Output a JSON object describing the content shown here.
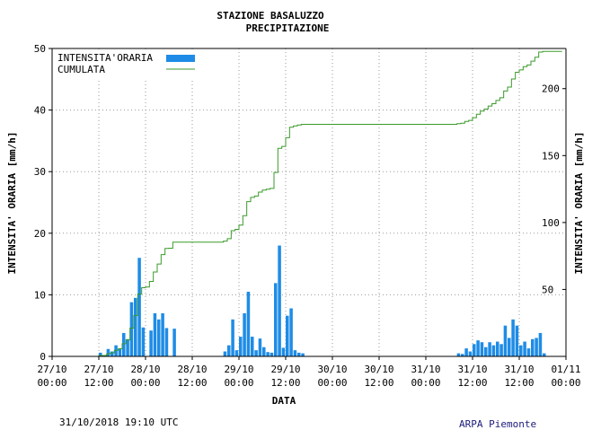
{
  "chart_data": {
    "type": "bar",
    "title": "STAZIONE BASALUZZO",
    "subtitle": "PRECIPITAZIONE",
    "xlabel": "DATA",
    "ylabel_left": "INTENSITA' ORARIA [mm/h]",
    "ylabel_right": "INTENSITA' ORARIA [mm/h]",
    "ylim_left": [
      0,
      50
    ],
    "ylim_right": [
      0,
      230
    ],
    "y_ticks_left": [
      "0",
      "10",
      "20",
      "30",
      "40",
      "50"
    ],
    "y_ticks_right": [
      "50",
      "100",
      "150",
      "200"
    ],
    "x_ticks": [
      {
        "date": "27/10",
        "time": "00:00"
      },
      {
        "date": "27/10",
        "time": "12:00"
      },
      {
        "date": "28/10",
        "time": "00:00"
      },
      {
        "date": "28/10",
        "time": "12:00"
      },
      {
        "date": "29/10",
        "time": "00:00"
      },
      {
        "date": "29/10",
        "time": "12:00"
      },
      {
        "date": "30/10",
        "time": "00:00"
      },
      {
        "date": "30/10",
        "time": "12:00"
      },
      {
        "date": "31/10",
        "time": "00:00"
      },
      {
        "date": "31/10",
        "time": "12:00"
      },
      {
        "date": "31/10",
        "time": "12:00"
      },
      {
        "date": "01/11",
        "time": "00:00"
      }
    ],
    "grid": true,
    "legend_position": "top-left",
    "series": [
      {
        "name": "INTENSITA'ORARIA",
        "kind": "bar",
        "color": "#1e8ce6",
        "points": [
          [
            12,
            0.6
          ],
          [
            14,
            1.2
          ],
          [
            15,
            0.8
          ],
          [
            16,
            1.8
          ],
          [
            17,
            1.2
          ],
          [
            18,
            3.8
          ],
          [
            19,
            2.8
          ],
          [
            20,
            8.8
          ],
          [
            21,
            9.5
          ],
          [
            22,
            16.0
          ],
          [
            23,
            4.7
          ],
          [
            25,
            4.2
          ],
          [
            26,
            7.0
          ],
          [
            27,
            6.0
          ],
          [
            28,
            7.0
          ],
          [
            29,
            4.6
          ],
          [
            31,
            4.5
          ],
          [
            44,
            0.8
          ],
          [
            45,
            1.8
          ],
          [
            46,
            6.0
          ],
          [
            47,
            1.0
          ],
          [
            48,
            3.2
          ],
          [
            49,
            7.0
          ],
          [
            50,
            10.5
          ],
          [
            51,
            3.2
          ],
          [
            52,
            1.0
          ],
          [
            53,
            2.9
          ],
          [
            54,
            1.5
          ],
          [
            55,
            0.7
          ],
          [
            56,
            0.6
          ],
          [
            57,
            11.9
          ],
          [
            58,
            18.0
          ],
          [
            59,
            1.4
          ],
          [
            60,
            6.6
          ],
          [
            61,
            7.8
          ],
          [
            62,
            1.0
          ],
          [
            63,
            0.6
          ],
          [
            64,
            0.5
          ],
          [
            104,
            0.5
          ],
          [
            105,
            0.4
          ],
          [
            106,
            1.3
          ],
          [
            107,
            0.8
          ],
          [
            108,
            2.0
          ],
          [
            109,
            2.6
          ],
          [
            110,
            2.3
          ],
          [
            111,
            1.5
          ],
          [
            112,
            2.3
          ],
          [
            113,
            1.8
          ],
          [
            114,
            2.4
          ],
          [
            115,
            2.0
          ],
          [
            116,
            5.0
          ],
          [
            117,
            3.0
          ],
          [
            118,
            6.0
          ],
          [
            119,
            5.0
          ],
          [
            120,
            1.8
          ],
          [
            121,
            2.4
          ],
          [
            122,
            1.3
          ],
          [
            123,
            2.8
          ],
          [
            124,
            3.0
          ],
          [
            125,
            3.8
          ],
          [
            126,
            0.5
          ]
        ]
      },
      {
        "name": "CUMULATA",
        "kind": "line",
        "color": "#3a9a2a",
        "points": [
          [
            0,
            0
          ],
          [
            11,
            0
          ],
          [
            12,
            0.6
          ],
          [
            13,
            0.7
          ],
          [
            14,
            1.9
          ],
          [
            15,
            2.7
          ],
          [
            16,
            4.5
          ],
          [
            17,
            5.7
          ],
          [
            18,
            9.5
          ],
          [
            19,
            12.3
          ],
          [
            20,
            21.1
          ],
          [
            21,
            30.6
          ],
          [
            22,
            46.6
          ],
          [
            23,
            51.3
          ],
          [
            24,
            51.8
          ],
          [
            25,
            56.0
          ],
          [
            26,
            63.0
          ],
          [
            27,
            69.0
          ],
          [
            28,
            76.0
          ],
          [
            29,
            80.6
          ],
          [
            30,
            80.8
          ],
          [
            31,
            85.3
          ],
          [
            44,
            86.1
          ],
          [
            45,
            87.9
          ],
          [
            46,
            93.9
          ],
          [
            47,
            94.9
          ],
          [
            48,
            98.1
          ],
          [
            49,
            105.1
          ],
          [
            50,
            115.6
          ],
          [
            51,
            118.8
          ],
          [
            52,
            119.8
          ],
          [
            53,
            122.7
          ],
          [
            54,
            124.2
          ],
          [
            55,
            124.9
          ],
          [
            56,
            125.5
          ],
          [
            57,
            137.4
          ],
          [
            58,
            155.4
          ],
          [
            59,
            156.8
          ],
          [
            60,
            163.4
          ],
          [
            61,
            171.2
          ],
          [
            62,
            172.2
          ],
          [
            63,
            172.8
          ],
          [
            64,
            173.3
          ],
          [
            103,
            173.3
          ],
          [
            104,
            173.8
          ],
          [
            105,
            174.2
          ],
          [
            106,
            175.5
          ],
          [
            107,
            176.3
          ],
          [
            108,
            178.3
          ],
          [
            109,
            180.9
          ],
          [
            110,
            183.2
          ],
          [
            111,
            184.7
          ],
          [
            112,
            187.0
          ],
          [
            113,
            188.8
          ],
          [
            114,
            191.2
          ],
          [
            115,
            193.2
          ],
          [
            116,
            198.2
          ],
          [
            117,
            201.2
          ],
          [
            118,
            207.2
          ],
          [
            119,
            212.2
          ],
          [
            120,
            214.0
          ],
          [
            121,
            216.4
          ],
          [
            122,
            217.7
          ],
          [
            123,
            220.5
          ],
          [
            124,
            223.5
          ],
          [
            125,
            227.3
          ],
          [
            126,
            227.8
          ],
          [
            131,
            227.8
          ]
        ]
      }
    ]
  },
  "footer": {
    "timestamp": "31/10/2018 19:10 UTC",
    "org": "ARPA Piemonte"
  },
  "colors": {
    "bar": "#1e8ce6",
    "line": "#3a9a2a",
    "grid": "#9a9a9a",
    "org": "#1a1a7a"
  }
}
